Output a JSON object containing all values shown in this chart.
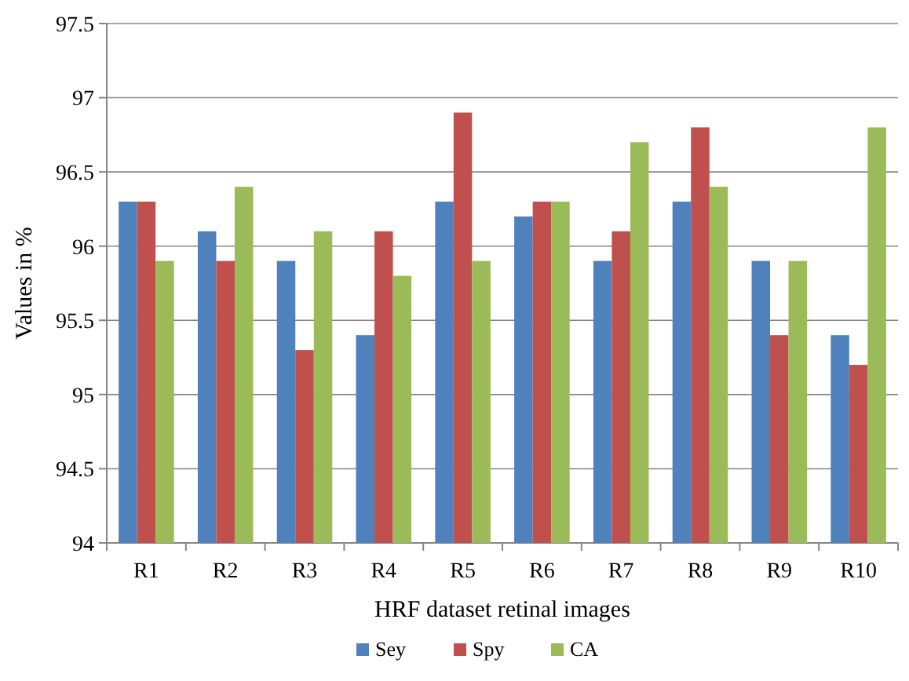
{
  "chart_data": {
    "type": "bar",
    "xlabel": "HRF dataset retinal images",
    "ylabel": "Values in %",
    "categories": [
      "R1",
      "R2",
      "R3",
      "R4",
      "R5",
      "R6",
      "R7",
      "R8",
      "R9",
      "R10"
    ],
    "series": [
      {
        "name": "Sey",
        "color": "#4f81bd",
        "values": [
          96.3,
          96.1,
          95.9,
          95.4,
          96.3,
          96.2,
          95.9,
          96.3,
          95.9,
          95.4
        ]
      },
      {
        "name": "Spy",
        "color": "#c0504d",
        "values": [
          96.3,
          95.9,
          95.3,
          96.1,
          96.9,
          96.3,
          96.1,
          96.8,
          95.4,
          95.2
        ]
      },
      {
        "name": "CA",
        "color": "#9bbb59",
        "values": [
          95.9,
          96.4,
          96.1,
          95.8,
          95.9,
          96.3,
          96.7,
          96.4,
          95.9,
          96.8
        ]
      }
    ],
    "ylim": [
      94,
      97.5
    ],
    "yticks": [
      94,
      94.5,
      95,
      95.5,
      96,
      96.5,
      97,
      97.5
    ],
    "grid": "y",
    "legend": "bottom"
  }
}
